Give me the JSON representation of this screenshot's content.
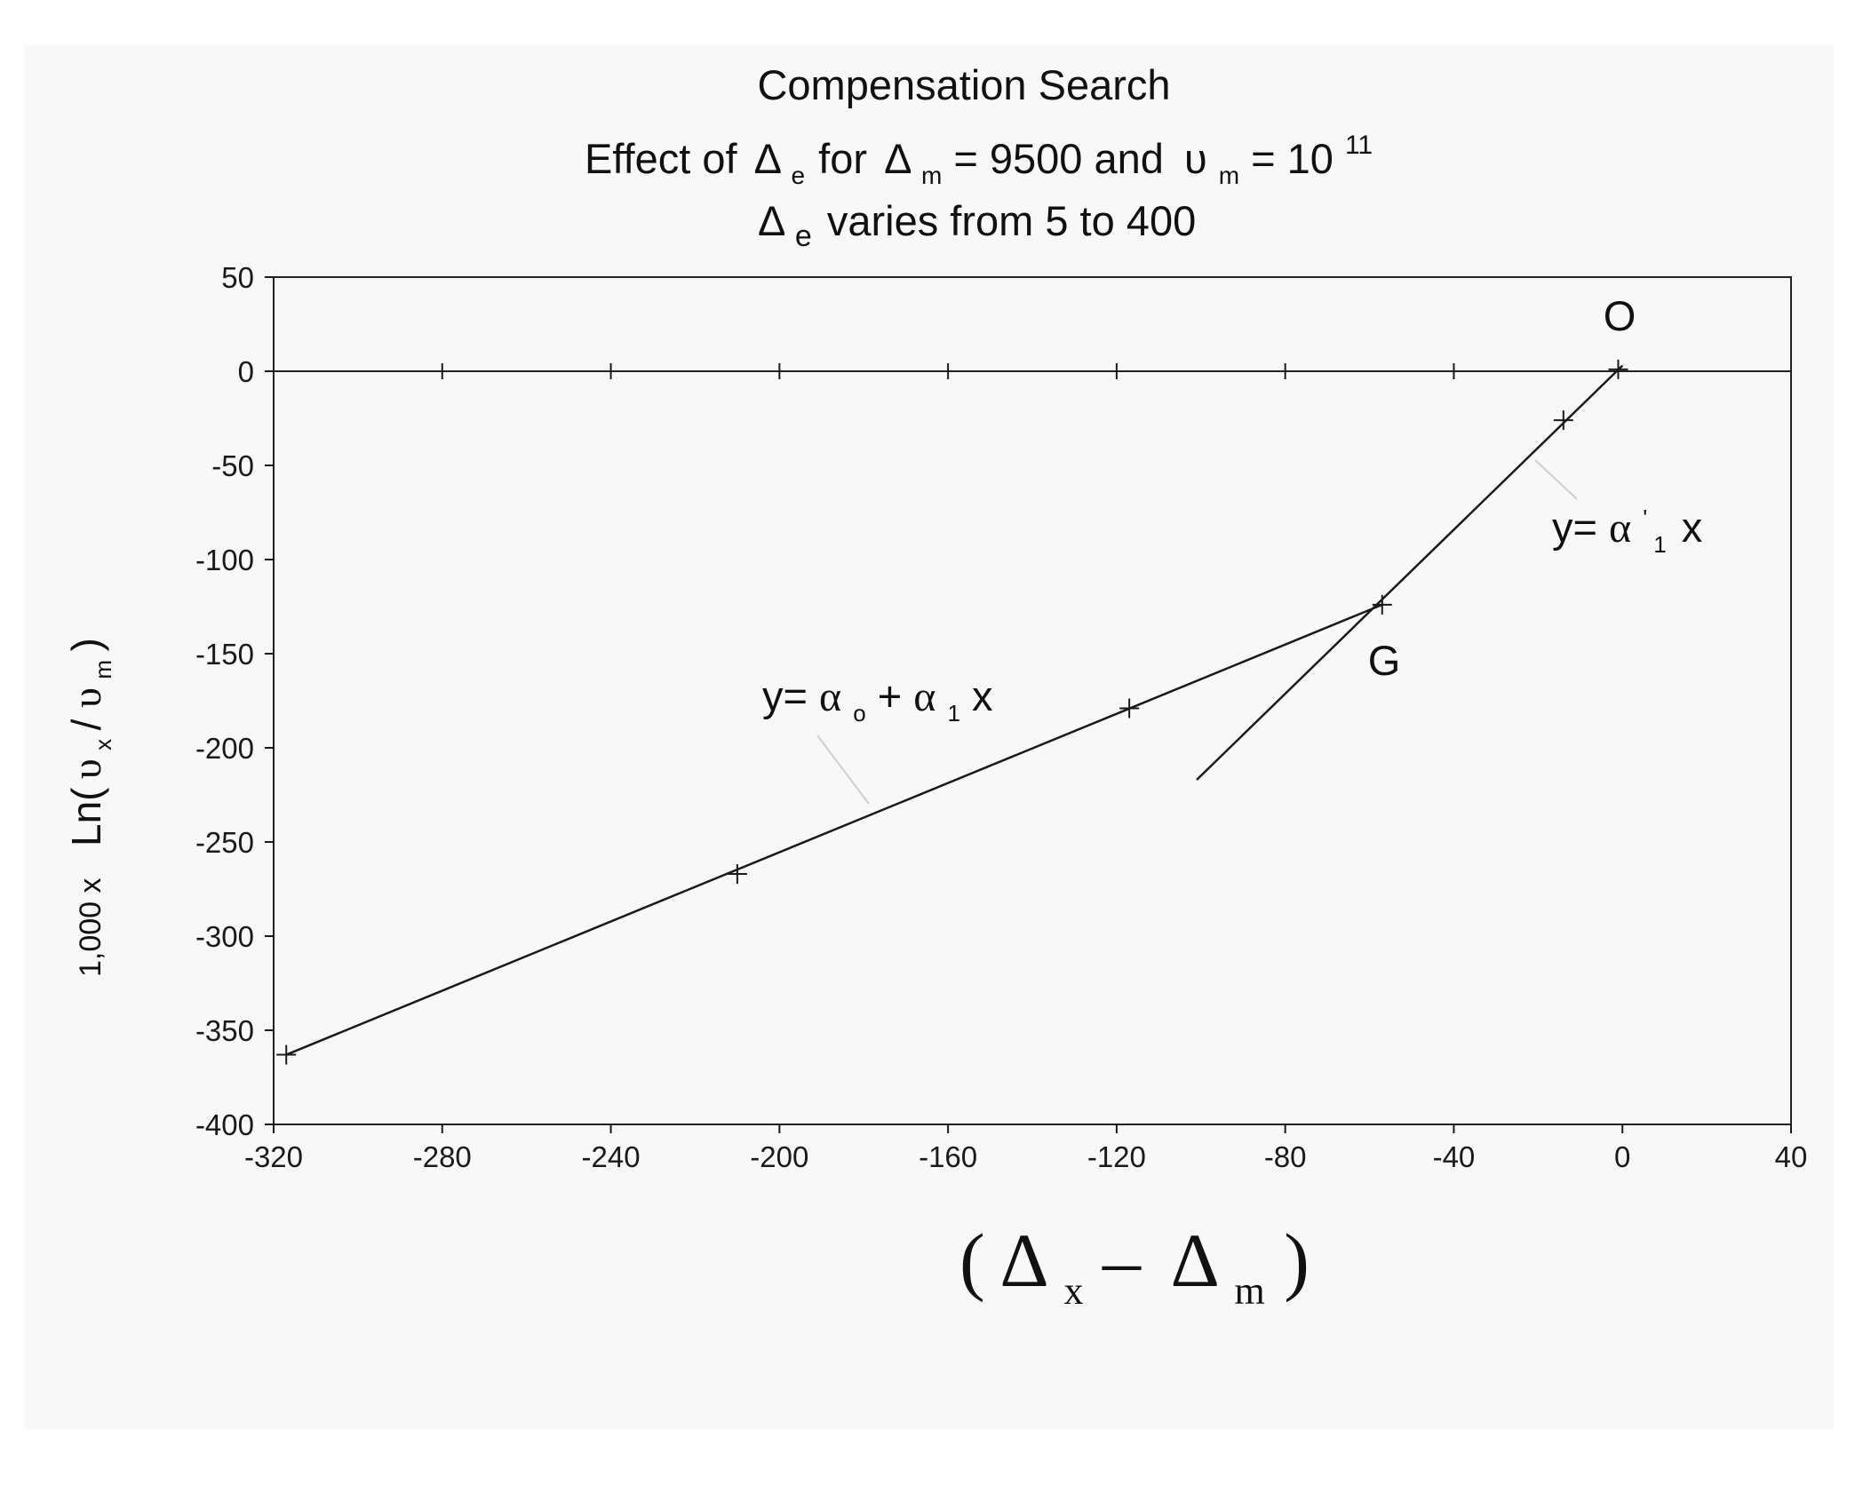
{
  "chart_data": {
    "type": "line",
    "title": "Compensation Search",
    "subtitle": {
      "prefix": "Effect of",
      "delta_symbol": "Δ",
      "delta_e_sub": "e",
      "middle": "for",
      "delta_m_sub": "m",
      "delta_m_value": "= 9500 and",
      "nu_symbol": "υ",
      "nu_m_sub": "m",
      "nu_m_value": "= 10",
      "nu_m_exp": "11"
    },
    "subtitle2": {
      "delta_symbol": "Δ",
      "sub": "e",
      "text": "varies from 5 to 400"
    },
    "xlabel": {
      "open": "(",
      "delta1": "Δ",
      "sub1": "x",
      "minus": "–",
      "delta2": "Δ",
      "sub2": "m",
      "close": ")"
    },
    "ylabel": {
      "prefix": "1,000 x",
      "ln": "Ln(",
      "nu1": "υ",
      "sub1": "x",
      "slash": " / ",
      "nu2": "υ",
      "sub2": "m",
      "close": ")"
    },
    "xlim": [
      -320,
      40
    ],
    "ylim": [
      -400,
      50
    ],
    "xticks": [
      -320,
      -280,
      -240,
      -200,
      -160,
      -120,
      -80,
      -40,
      0,
      40
    ],
    "yticks": [
      50,
      0,
      -50,
      -100,
      -150,
      -200,
      -250,
      -300,
      -350,
      -400
    ],
    "grid": false,
    "series": [
      {
        "role": "data-points",
        "x": [
          -317,
          -210,
          -117,
          -57,
          -14,
          -1
        ],
        "y": [
          -363,
          -267,
          -179,
          -124,
          -26,
          1
        ]
      },
      {
        "role": "fit-line-a0-a1",
        "x": [
          -317,
          -57
        ],
        "y": [
          -363,
          -124
        ]
      },
      {
        "role": "fit-line-a1-prime",
        "x": [
          -101,
          0
        ],
        "y": [
          -217,
          3
        ]
      },
      {
        "role": "zero-reference",
        "x": [
          -320,
          40
        ],
        "y": [
          0,
          0
        ]
      }
    ],
    "zero_line_ticks": [
      -280,
      -240,
      -200,
      -160,
      -120,
      -80,
      -40
    ],
    "annotations": {
      "point_O": "O",
      "point_G": "G",
      "eq1": {
        "prefix": "y= ",
        "alpha": "α",
        "sub0": "o",
        "plus": "+ ",
        "sub1": "1",
        "suffix": "x"
      },
      "eq2": {
        "prefix": "y=",
        "alpha": "α",
        "sup": "'",
        "sub": "1",
        "suffix": "x"
      }
    },
    "colors": {
      "line": "#1a1a1a",
      "background": "#f8f8f8"
    }
  }
}
